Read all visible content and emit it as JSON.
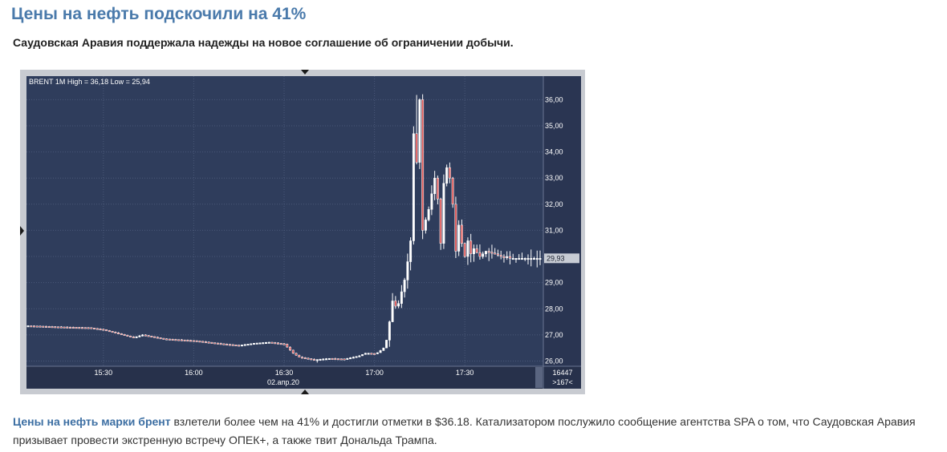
{
  "article": {
    "headline": "Цены на нефть подскочили на 41%",
    "subtitle": "Саудовская Аравия поддержала надежды на новое соглашение об ограничении добычи.",
    "body_link": "Цены на нефть марки брент",
    "body_text": " взлетели более чем на 41% и достигли отметки в $36.18. Катализатором послужило сообщение агентства SPA о том, что Саудовская Аравия призывает провести экстренную встречу ОПЕК+, а также твит Дональда Трампа."
  },
  "chart_data": {
    "type": "candlestick",
    "title": "BRENT 1M High = 36,18 Low = 25,94",
    "instrument": "BRENT",
    "timeframe": "1M",
    "high": 36.18,
    "low": 25.94,
    "last_price": 29.93,
    "last_price_label": "29,93",
    "date_label": "02.апр.20",
    "ylim": [
      25.8,
      36.9
    ],
    "y_ticks": [
      26,
      27,
      28,
      29,
      30,
      31,
      32,
      33,
      34,
      35,
      36
    ],
    "y_tick_labels": [
      "26,00",
      "27,00",
      "28,00",
      "29,00",
      "30,00",
      "31,00",
      "32,00",
      "33,00",
      "34,00",
      "35,00",
      "36,00"
    ],
    "x_ticks": [
      "15:30",
      "16:00",
      "16:30",
      "17:00",
      "17:30"
    ],
    "corner_top": "16447",
    "corner_bottom": ">167<",
    "grid": true,
    "colors": {
      "background": "#2f3d5c",
      "grid": "#4a5878",
      "up_candle": "#ffffff",
      "down_candle": "#e05a5a",
      "text": "#ffffff",
      "price_tag": "#c8ccd4"
    },
    "series_anchors": {
      "t_minutes_from_1505": [
        0,
        12,
        20,
        25,
        35,
        38,
        45,
        55,
        65,
        70,
        75,
        80,
        85,
        88,
        90,
        95,
        100,
        105,
        108,
        110,
        112,
        113,
        115,
        116,
        117,
        118,
        119,
        120,
        121,
        122,
        123,
        125,
        126,
        127,
        128,
        129,
        130,
        131,
        133,
        135,
        136,
        137,
        138,
        139,
        140,
        141,
        142,
        143,
        144,
        145,
        146,
        147,
        148,
        150,
        152,
        155,
        157,
        158,
        159,
        160,
        162,
        165,
        168,
        170
      ],
      "close": [
        27.35,
        27.3,
        27.28,
        27.2,
        26.9,
        27.0,
        26.85,
        26.78,
        26.65,
        26.6,
        26.68,
        26.72,
        26.65,
        26.3,
        26.15,
        26.05,
        26.1,
        26.08,
        26.15,
        26.2,
        26.3,
        26.3,
        26.28,
        26.32,
        26.4,
        26.5,
        26.8,
        27.5,
        28.3,
        28.1,
        28.2,
        29.1,
        29.8,
        30.6,
        34.7,
        33.6,
        36.0,
        31.0,
        31.8,
        33.0,
        32.2,
        30.5,
        32.8,
        33.4,
        33.0,
        32.0,
        30.2,
        31.2,
        30.5,
        30.0,
        30.6,
        30.1,
        30.3,
        30.0,
        30.2,
        30.1,
        30.0,
        29.95,
        30.0,
        29.93,
        29.93,
        29.93,
        29.93,
        29.93
      ]
    }
  }
}
